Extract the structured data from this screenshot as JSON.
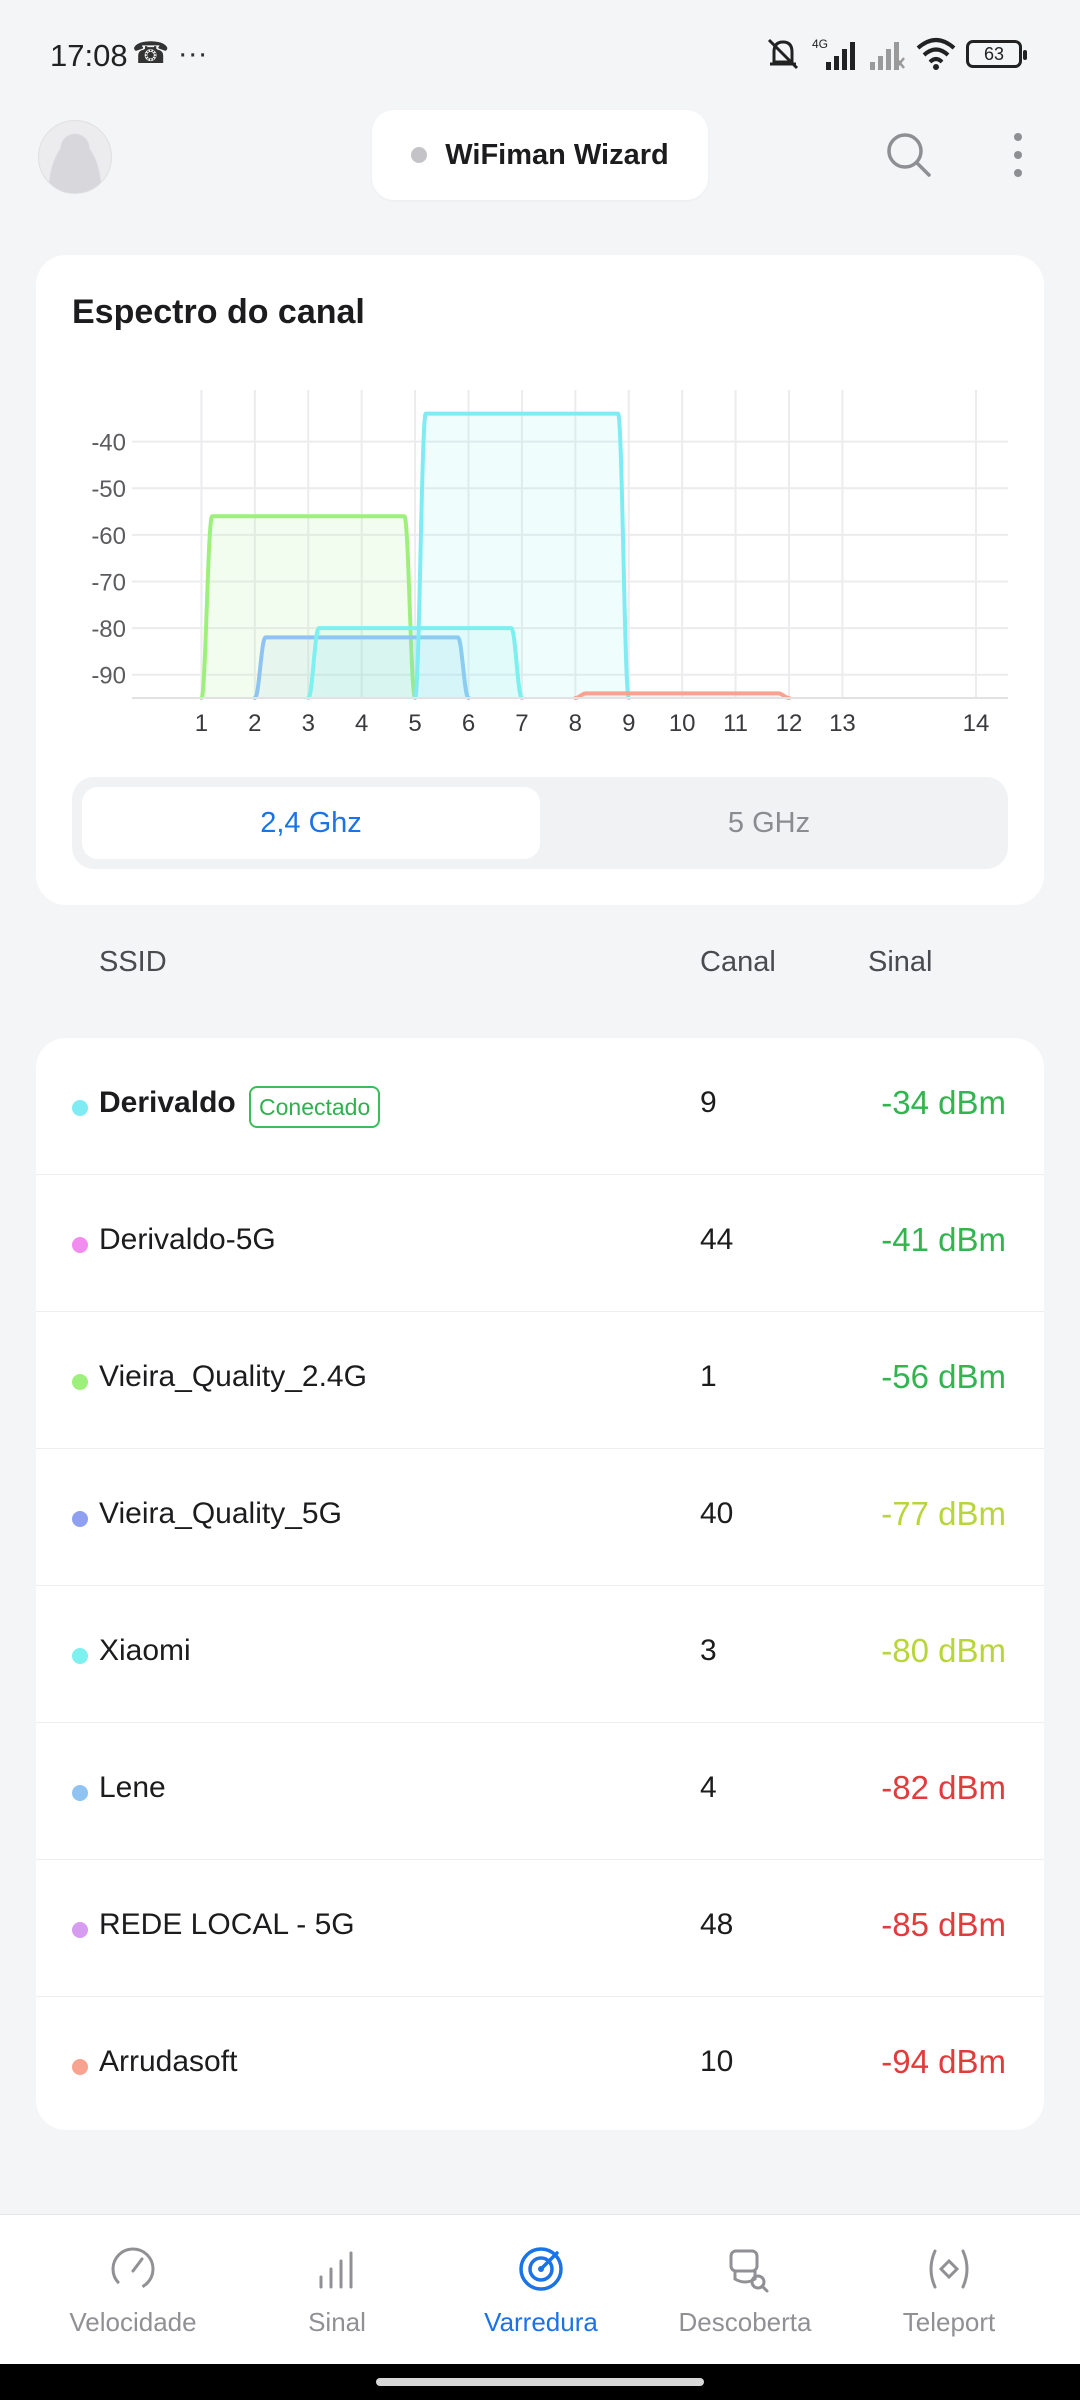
{
  "status_bar": {
    "time": "17:08",
    "left_icons": "☎ ···",
    "battery": "63",
    "network": "4G"
  },
  "header": {
    "title": "WiFiman Wizard"
  },
  "chart_card": {
    "title": "Espectro do canal",
    "tabs": [
      {
        "label": "2,4 Ghz",
        "active": true
      },
      {
        "label": "5 GHz",
        "active": false
      }
    ]
  },
  "chart_data": {
    "type": "area",
    "title": "Espectro do canal",
    "xlabel": "",
    "ylabel": "",
    "x_ticks": [
      "1",
      "2",
      "3",
      "4",
      "5",
      "6",
      "7",
      "8",
      "9",
      "10",
      "11",
      "12",
      "13",
      "14"
    ],
    "y_ticks": [
      "-40",
      "-50",
      "-60",
      "-70",
      "-80",
      "-90"
    ],
    "xlim": [
      -0.3,
      16.1
    ],
    "ylim": [
      -95,
      -30
    ],
    "grid": true,
    "series": [
      {
        "center": 3,
        "value": -56,
        "color": "#9ef07c"
      },
      {
        "center": 4,
        "value": -82,
        "color": "#8fc4f2"
      },
      {
        "center": 5,
        "value": -80,
        "color": "#7df0f0"
      },
      {
        "center": 7,
        "value": -34,
        "color": "#7eecf2"
      },
      {
        "center": 10,
        "value": -94,
        "color": "#f7a38f"
      }
    ]
  },
  "table": {
    "headers": {
      "ssid": "SSID",
      "channel": "Canal",
      "signal": "Sinal"
    },
    "rows": [
      {
        "ssid": "Derivaldo",
        "badge": "Conectado",
        "channel": "9",
        "signal": "-34 dBm",
        "dot": "#7eecf2",
        "signal_color": "#32b44f"
      },
      {
        "ssid": "Derivaldo-5G",
        "channel": "44",
        "signal": "-41 dBm",
        "dot": "#f28cf0",
        "signal_color": "#32b44f"
      },
      {
        "ssid": "Vieira_Quality_2.4G",
        "channel": "1",
        "signal": "-56 dBm",
        "dot": "#9ef07c",
        "signal_color": "#32b44f"
      },
      {
        "ssid": "Vieira_Quality_5G",
        "channel": "40",
        "signal": "-77 dBm",
        "dot": "#8fa0f0",
        "signal_color": "#b9d53c"
      },
      {
        "ssid": "Xiaomi",
        "channel": "3",
        "signal": "-80 dBm",
        "dot": "#7df0f0",
        "signal_color": "#b9d53c"
      },
      {
        "ssid": "Lene",
        "channel": "4",
        "signal": "-82 dBm",
        "dot": "#8fc4f2",
        "signal_color": "#e23b3b"
      },
      {
        "ssid": "REDE LOCAL - 5G",
        "channel": "48",
        "signal": "-85 dBm",
        "dot": "#d69cf0",
        "signal_color": "#e23b3b"
      },
      {
        "ssid": "Arrudasoft",
        "channel": "10",
        "signal": "-94 dBm",
        "dot": "#f7a38f",
        "signal_color": "#e23b3b"
      }
    ]
  },
  "bottom_nav": [
    {
      "label": "Velocidade",
      "icon": "speedometer-icon"
    },
    {
      "label": "Sinal",
      "icon": "signal-bars-icon"
    },
    {
      "label": "Varredura",
      "icon": "radar-scan-icon",
      "active": true
    },
    {
      "label": "Descoberta",
      "icon": "discovery-icon"
    },
    {
      "label": "Teleport",
      "icon": "teleport-icon"
    }
  ],
  "colors": {
    "accent": "#1a73e8",
    "good": "#32b44f",
    "fair": "#b9d53c",
    "poor": "#e23b3b"
  }
}
